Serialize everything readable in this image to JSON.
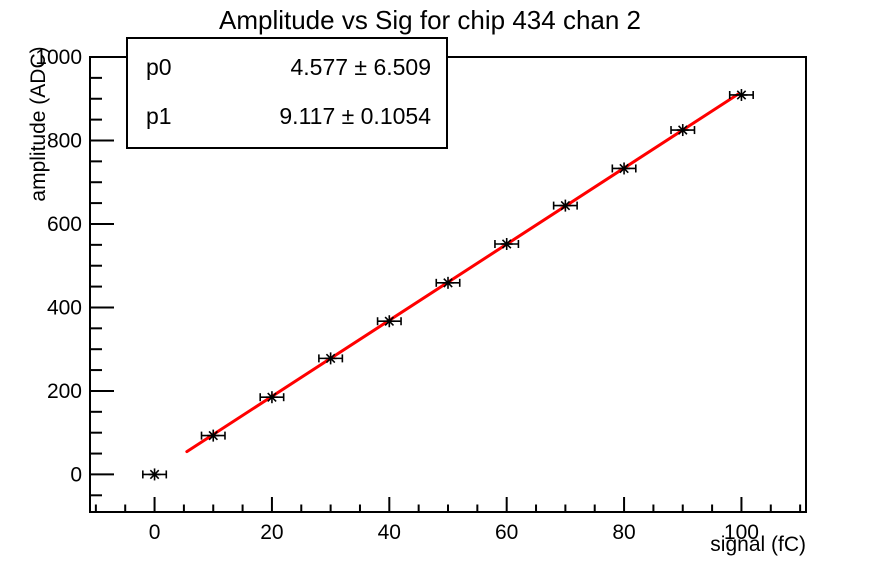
{
  "title": "Amplitude vs Sig for chip 434 chan 2",
  "stats": {
    "rows": [
      {
        "name": "p0",
        "value": "4.577 ± 6.509"
      },
      {
        "name": "p1",
        "value": "9.117 ± 0.1054"
      }
    ]
  },
  "chart_data": {
    "type": "scatter",
    "title": "Amplitude vs Sig for chip 434 chan 2",
    "xlabel": "signal (fC)",
    "ylabel": "amplitude (ADC)",
    "xlim": [
      -11,
      111
    ],
    "ylim": [
      -90,
      1000
    ],
    "x_ticks": [
      0,
      20,
      40,
      60,
      80,
      100
    ],
    "y_ticks": [
      0,
      200,
      400,
      600,
      800,
      1000
    ],
    "x_minor_step": 5,
    "y_minor_step": 50,
    "grid": false,
    "legend": false,
    "marker": "asterisk",
    "marker_color": "#000000",
    "axis_color": "#000000",
    "points": {
      "x": [
        0,
        10,
        20,
        30,
        40,
        50,
        60,
        70,
        80,
        90,
        100
      ],
      "y": [
        0,
        93,
        185,
        278,
        367,
        459,
        552,
        644,
        733,
        825,
        909
      ],
      "xerr": 2
    },
    "fit": {
      "type": "pol1",
      "p0": 4.577,
      "p0_err": 6.509,
      "p1": 9.117,
      "p1_err": 0.1054,
      "color": "#ff0000",
      "draw_range": [
        5.5,
        99.5
      ]
    }
  }
}
